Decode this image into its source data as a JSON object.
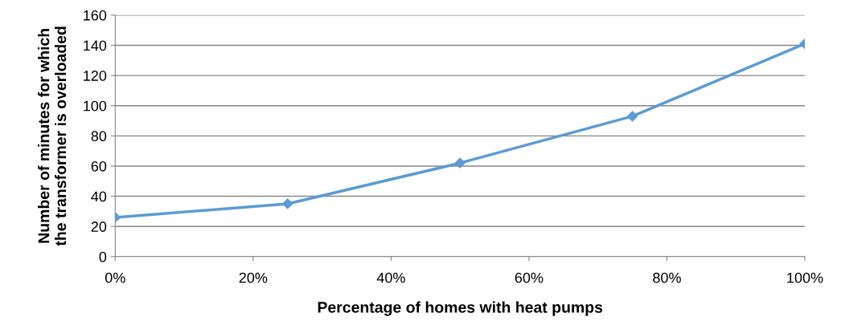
{
  "chart_data": {
    "type": "line",
    "xlabel": "Percentage of homes with heat pumps",
    "ylabel": "Number of minutes for which\nthe transformer is overloaded",
    "x": [
      0,
      25,
      50,
      75,
      100
    ],
    "series": [
      {
        "color": "#5b9bd5",
        "values": [
          26,
          35,
          62,
          93,
          141
        ]
      }
    ],
    "xlim": [
      0,
      100
    ],
    "xticks": [
      {
        "value": 0,
        "label": "0%"
      },
      {
        "value": 20,
        "label": "20%"
      },
      {
        "value": 40,
        "label": "40%"
      },
      {
        "value": 60,
        "label": "60%"
      },
      {
        "value": 80,
        "label": "80%"
      },
      {
        "value": 100,
        "label": "100%"
      }
    ],
    "ylim": [
      0,
      160
    ],
    "yticks": [
      0,
      20,
      40,
      60,
      80,
      100,
      120,
      140,
      160
    ],
    "grid": "y",
    "marker": "diamond",
    "line_style": "solid"
  }
}
